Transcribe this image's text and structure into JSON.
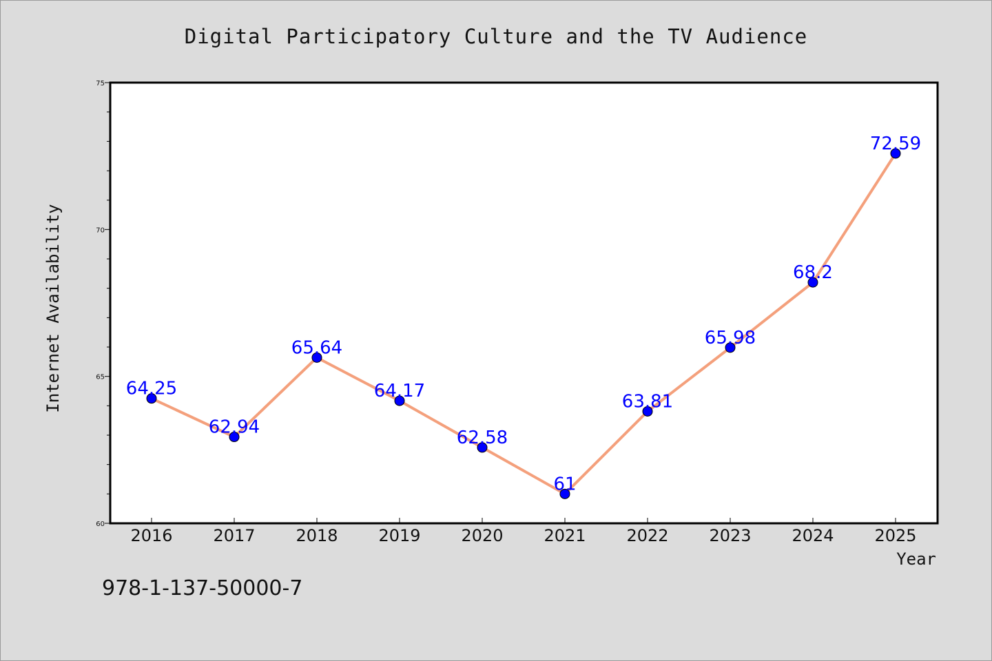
{
  "chart_data": {
    "type": "line",
    "title": "Digital Participatory Culture and the TV Audience",
    "xlabel": "Year",
    "ylabel": "Internet Availability",
    "categories": [
      "2016",
      "2017",
      "2018",
      "2019",
      "2020",
      "2021",
      "2022",
      "2023",
      "2024",
      "2025"
    ],
    "series": [
      {
        "values": [
          64.25,
          62.94,
          65.64,
          64.17,
          62.58,
          61,
          63.81,
          65.98,
          68.2,
          72.59
        ],
        "labels": [
          "64.25",
          "62.94",
          "65.64",
          "64.17",
          "62.58",
          "61",
          "63.81",
          "65.98",
          "68.2",
          "72.59"
        ],
        "line_color": "#f4a07c",
        "marker_color": "#0000ff"
      }
    ],
    "ylim": [
      60,
      75
    ],
    "yticks": [
      "60",
      "65",
      "70",
      "75"
    ],
    "grid": false,
    "legend": "none"
  },
  "footer": {
    "isbn": "978-1-137-50000-7"
  }
}
